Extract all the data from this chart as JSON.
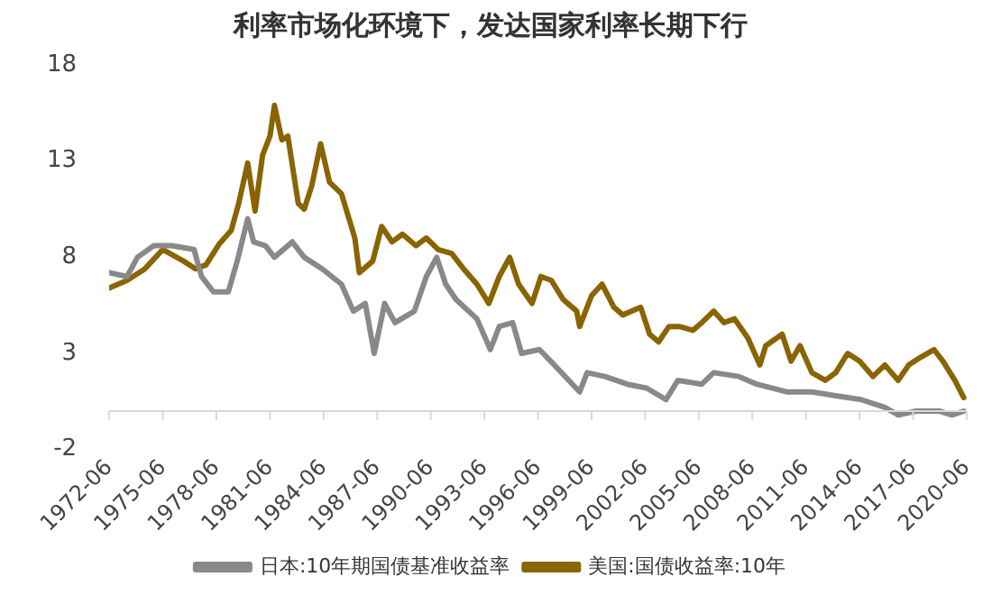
{
  "chart_data": {
    "type": "line",
    "title": "利率市场化环境下，发达国家利率长期下行",
    "series": [
      {
        "name": "日本:10年期国债基准收益率",
        "color": "#898989",
        "x": [
          "1972-06",
          "1973-06",
          "1974-01",
          "1974-12",
          "1975-12",
          "1977-03",
          "1977-08",
          "1978-04",
          "1979-02",
          "1979-08",
          "1980-03",
          "1980-07",
          "1981-03",
          "1981-09",
          "1982-09",
          "1983-05",
          "1984-05",
          "1985-06",
          "1986-02",
          "1986-10",
          "1987-04",
          "1987-11",
          "1988-06",
          "1989-07",
          "1990-03",
          "1990-10",
          "1991-04",
          "1991-11",
          "1993-01",
          "1993-10",
          "1994-04",
          "1995-01",
          "1995-07",
          "1996-07",
          "1997-05",
          "1998-10",
          "1999-03",
          "2000-03",
          "2001-06",
          "2002-07",
          "2003-08",
          "2004-04",
          "2005-08",
          "2006-04",
          "2007-09",
          "2008-09",
          "2010-05",
          "2011-10",
          "2013-02",
          "2014-07",
          "2015-11",
          "2016-08",
          "2017-08",
          "2018-12",
          "2019-08",
          "2020-04"
        ],
        "values": [
          7.2,
          7.0,
          8.0,
          8.6,
          8.6,
          8.4,
          7.0,
          6.2,
          6.2,
          7.8,
          10.0,
          8.8,
          8.6,
          8.0,
          8.8,
          8.0,
          7.4,
          6.6,
          5.2,
          5.6,
          3.0,
          5.6,
          4.6,
          5.2,
          7.0,
          8.0,
          6.6,
          5.8,
          4.8,
          3.2,
          4.4,
          4.6,
          3.0,
          3.2,
          2.4,
          1.0,
          2.0,
          1.8,
          1.4,
          1.2,
          0.6,
          1.6,
          1.4,
          2.0,
          1.8,
          1.4,
          1.0,
          1.0,
          0.8,
          0.6,
          0.2,
          -0.2,
          0.0,
          0.0,
          -0.2,
          0.0
        ]
      },
      {
        "name": "美国:国债收益率:10年",
        "color": "#8a6400",
        "x": [
          "1972-06",
          "1973-06",
          "1974-06",
          "1975-06",
          "1976-08",
          "1977-04",
          "1977-11",
          "1978-08",
          "1979-04",
          "1979-09",
          "1980-03",
          "1980-08",
          "1981-01",
          "1981-06",
          "1981-09",
          "1982-02",
          "1982-06",
          "1983-01",
          "1983-05",
          "1983-10",
          "1984-04",
          "1984-10",
          "1985-06",
          "1986-03",
          "1986-06",
          "1987-03",
          "1987-09",
          "1988-04",
          "1988-11",
          "1989-08",
          "1990-03",
          "1990-11",
          "1991-08",
          "1992-04",
          "1993-01",
          "1993-09",
          "1994-04",
          "1994-11",
          "1995-05",
          "1996-02",
          "1996-08",
          "1997-03",
          "1997-11",
          "1998-08",
          "1998-10",
          "1999-06",
          "2000-01",
          "2000-09",
          "2001-03",
          "2002-03",
          "2002-09",
          "2003-03",
          "2003-10",
          "2004-05",
          "2005-02",
          "2005-08",
          "2006-04",
          "2006-11",
          "2007-06",
          "2008-03",
          "2008-11",
          "2009-03",
          "2010-02",
          "2010-08",
          "2011-02",
          "2011-10",
          "2012-07",
          "2013-02",
          "2013-10",
          "2014-06",
          "2015-03",
          "2015-11",
          "2016-08",
          "2017-03",
          "2017-11",
          "2018-08",
          "2019-02",
          "2019-10",
          "2020-04"
        ],
        "values": [
          6.4,
          6.8,
          7.4,
          8.4,
          7.8,
          7.4,
          7.6,
          8.7,
          9.4,
          10.8,
          12.9,
          10.4,
          13.3,
          14.3,
          15.9,
          14.1,
          14.3,
          10.8,
          10.5,
          11.7,
          13.9,
          11.9,
          11.3,
          9.0,
          7.2,
          7.8,
          9.6,
          8.8,
          9.2,
          8.6,
          9.0,
          8.4,
          8.2,
          7.4,
          6.6,
          5.6,
          7.0,
          8.0,
          6.6,
          5.6,
          7.0,
          6.8,
          5.8,
          5.2,
          4.4,
          6.0,
          6.6,
          5.4,
          5.0,
          5.4,
          4.0,
          3.6,
          4.4,
          4.4,
          4.2,
          4.6,
          5.2,
          4.6,
          4.8,
          3.8,
          2.4,
          3.4,
          4.0,
          2.6,
          3.4,
          2.0,
          1.6,
          2.0,
          3.0,
          2.6,
          1.8,
          2.4,
          1.6,
          2.4,
          2.8,
          3.2,
          2.6,
          1.6,
          0.7
        ]
      }
    ],
    "xlim": [
      "1972-06",
      "2020-06"
    ],
    "xticks": [
      "1972-06",
      "1975-06",
      "1978-06",
      "1981-06",
      "1984-06",
      "1987-06",
      "1990-06",
      "1993-06",
      "1996-06",
      "1999-06",
      "2002-06",
      "2005-06",
      "2008-06",
      "2011-06",
      "2014-06",
      "2017-06",
      "2020-06"
    ],
    "ylim": [
      -2,
      18
    ],
    "yticks": [
      -2,
      3,
      8,
      13,
      18
    ],
    "grid": false,
    "legend": "bottom",
    "marker": "none",
    "line_style": "solid"
  }
}
